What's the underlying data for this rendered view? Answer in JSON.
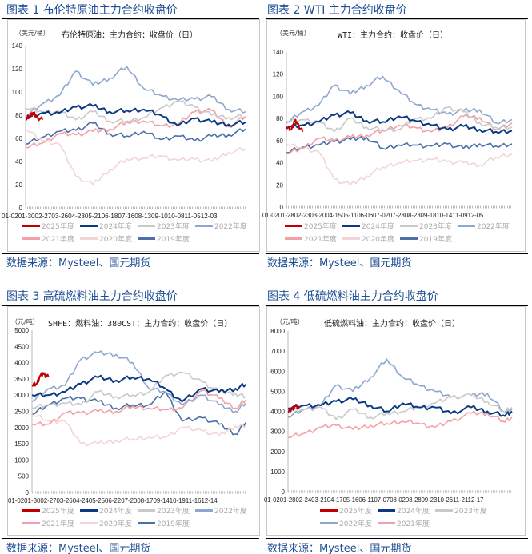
{
  "source": "数据来源：Mysteel、国元期货",
  "colors": {
    "2025年度": "#c00000",
    "2024年度": "#0b3a82",
    "2023年度": "#c9c9c9",
    "2022年度": "#8ea7cf",
    "2021年度": "#f3a0a8",
    "2020年度": "#f1d5d7",
    "2019年度": "#4b6fa9"
  },
  "chart_data": [
    {
      "type": "line",
      "figure_title": "图表 1 布伦特原油主力合约收盘价",
      "title": "布伦特原油：主力合约：收盘价（日）",
      "ylabel": "（美元/桶）",
      "ylim": [
        0,
        140
      ],
      "yticks": [
        0,
        20,
        40,
        60,
        80,
        100,
        120,
        140
      ],
      "xticks": [
        "01-02",
        "01-30",
        "02-27",
        "03-26",
        "04-23",
        "05-21",
        "06-18",
        "07-16",
        "08-13",
        "09-10",
        "10-08",
        "11-05",
        "12-03"
      ],
      "x": [
        "01-02",
        "01-30",
        "02-27",
        "03-26",
        "04-23",
        "05-21",
        "06-18",
        "07-16",
        "08-13",
        "09-10",
        "10-08",
        "11-05",
        "12-03",
        "12-31"
      ],
      "legend_placement": "bottom",
      "grid": false,
      "series": [
        {
          "name": "2025年度",
          "x": [
            "01-02",
            "01-10",
            "01-15",
            "01-20",
            "01-30"
          ],
          "values": [
            76,
            80,
            82,
            78,
            76
          ]
        },
        {
          "name": "2024年度",
          "values": [
            77,
            82,
            82,
            87,
            88,
            83,
            84,
            85,
            80,
            71,
            77,
            74,
            72,
            74
          ]
        },
        {
          "name": "2023年度",
          "values": [
            86,
            83,
            83,
            76,
            83,
            75,
            75,
            78,
            86,
            92,
            87,
            80,
            78,
            79
          ]
        },
        {
          "name": "2022年度",
          "values": [
            79,
            90,
            97,
            118,
            106,
            112,
            122,
            103,
            97,
            93,
            94,
            96,
            85,
            83
          ]
        },
        {
          "name": "2021年度",
          "values": [
            52,
            56,
            64,
            63,
            66,
            68,
            74,
            75,
            71,
            72,
            83,
            84,
            70,
            79
          ]
        },
        {
          "name": "2020年度",
          "values": [
            68,
            58,
            55,
            27,
            20,
            33,
            42,
            43,
            45,
            41,
            42,
            40,
            48,
            51
          ]
        },
        {
          "name": "2019年度",
          "values": [
            55,
            61,
            66,
            67,
            73,
            64,
            62,
            66,
            59,
            62,
            58,
            62,
            63,
            68
          ]
        }
      ]
    },
    {
      "type": "line",
      "figure_title": "图表 2 WTI 主力合约收盘价",
      "title": "WTI：主力合约：收盘价（日）",
      "ylabel": "（美元/桶）",
      "ylim": [
        0,
        140
      ],
      "yticks": [
        0,
        20,
        40,
        60,
        80,
        100,
        120,
        140
      ],
      "xticks": [
        "01-02",
        "01-28",
        "02-23",
        "03-20",
        "04-15",
        "05-11",
        "06-06",
        "07-02",
        "07-28",
        "08-23",
        "09-18",
        "10-14",
        "11-09",
        "12-05"
      ],
      "x": [
        "01-02",
        "01-28",
        "02-23",
        "03-20",
        "04-15",
        "05-11",
        "06-06",
        "07-02",
        "07-28",
        "08-23",
        "09-18",
        "10-14",
        "11-09",
        "12-05",
        "12-31"
      ],
      "legend_placement": "bottom",
      "grid": false,
      "series": [
        {
          "name": "2025年度",
          "x": [
            "01-02",
            "01-10",
            "01-15",
            "01-20",
            "01-28"
          ],
          "values": [
            72,
            70,
            78,
            75,
            68
          ]
        },
        {
          "name": "2024年度",
          "values": [
            72,
            74,
            77,
            83,
            85,
            78,
            77,
            82,
            78,
            74,
            70,
            73,
            70,
            68,
            69
          ]
        },
        {
          "name": "2023年度",
          "values": [
            77,
            79,
            77,
            68,
            80,
            72,
            70,
            70,
            80,
            80,
            90,
            86,
            76,
            72,
            72
          ]
        },
        {
          "name": "2022年度",
          "values": [
            76,
            86,
            92,
            110,
            102,
            110,
            118,
            105,
            93,
            88,
            84,
            87,
            88,
            76,
            79
          ]
        },
        {
          "name": "2021年度",
          "values": [
            48,
            53,
            62,
            60,
            63,
            65,
            69,
            74,
            72,
            68,
            72,
            82,
            81,
            70,
            76
          ]
        },
        {
          "name": "2020年度",
          "values": [
            57,
            53,
            50,
            25,
            20,
            28,
            36,
            40,
            42,
            43,
            41,
            40,
            38,
            45,
            48
          ]
        },
        {
          "name": "2019年度",
          "values": [
            49,
            54,
            56,
            59,
            61,
            63,
            53,
            56,
            56,
            55,
            57,
            53,
            57,
            55,
            57
          ]
        }
      ]
    },
    {
      "type": "line",
      "figure_title": "图表 3 高硫燃料油主力合约收盘价",
      "title": "SHFE：燃料油：380CST：主力合约：收盘价（日）",
      "ylabel": "（元/吨）",
      "ylim": [
        0,
        5000
      ],
      "yticks": [
        0,
        500,
        1000,
        1500,
        2000,
        2500,
        3000,
        3500,
        4000,
        4500,
        5000
      ],
      "xticks": [
        "01-02",
        "01-30",
        "02-27",
        "03-26",
        "04-24",
        "05-25",
        "06-22",
        "07-20",
        "08-17",
        "09-14",
        "10-19",
        "11-16",
        "12-14"
      ],
      "x": [
        "01-02",
        "01-30",
        "02-27",
        "03-26",
        "04-24",
        "05-25",
        "06-22",
        "07-20",
        "08-17",
        "09-14",
        "10-19",
        "11-16",
        "12-14",
        "12-31"
      ],
      "legend_placement": "bottom",
      "grid": false,
      "series": [
        {
          "name": "2025年度",
          "x": [
            "01-02",
            "01-10",
            "01-16",
            "01-22",
            "01-30"
          ],
          "values": [
            3300,
            3350,
            3600,
            3650,
            3550
          ]
        },
        {
          "name": "2024年度",
          "values": [
            3000,
            3000,
            3100,
            3350,
            3550,
            3450,
            3550,
            3500,
            3200,
            2800,
            3200,
            3100,
            3200,
            3330
          ]
        },
        {
          "name": "2023年度",
          "values": [
            2600,
            2700,
            2750,
            2700,
            3100,
            2950,
            3000,
            3100,
            3600,
            3700,
            3400,
            3100,
            3050,
            2950
          ]
        },
        {
          "name": "2022年度",
          "values": [
            2800,
            3200,
            3300,
            4100,
            4300,
            4250,
            4000,
            3200,
            3100,
            2700,
            3000,
            2700,
            2500,
            2750
          ]
        },
        {
          "name": "2021年度",
          "values": [
            2100,
            2100,
            2450,
            2450,
            2500,
            2500,
            2650,
            2600,
            2550,
            2600,
            3150,
            2900,
            2600,
            2850
          ]
        },
        {
          "name": "2020年度",
          "values": [
            2400,
            2200,
            2200,
            1500,
            1500,
            1600,
            1650,
            1700,
            1700,
            2000,
            1900,
            1750,
            2050,
            2050
          ]
        },
        {
          "name": "2019年度",
          "values": [
            2400,
            2700,
            2900,
            2900,
            2800,
            2600,
            2700,
            2700,
            3100,
            2200,
            2300,
            2100,
            1800,
            2150
          ]
        }
      ]
    },
    {
      "type": "line",
      "figure_title": "图表 4 低硫燃料油主力合约收盘价",
      "title": "低硫燃料油：主力合约：收盘价（日）",
      "ylabel": "（元/吨）",
      "ylim": [
        0,
        8000
      ],
      "yticks": [
        0,
        1000,
        2000,
        3000,
        4000,
        5000,
        6000,
        7000,
        8000
      ],
      "xticks": [
        "01-02",
        "01-28",
        "02-24",
        "03-21",
        "04-17",
        "05-16",
        "06-11",
        "07-07",
        "08-02",
        "08-28",
        "09-23",
        "10-26",
        "11-21",
        "12-17"
      ],
      "x": [
        "01-02",
        "01-28",
        "02-24",
        "03-21",
        "04-17",
        "05-16",
        "06-11",
        "07-07",
        "08-02",
        "08-28",
        "09-23",
        "10-26",
        "11-21",
        "12-17",
        "12-31"
      ],
      "legend_placement": "bottom",
      "grid": false,
      "series": [
        {
          "name": "2025年度",
          "x": [
            "01-02",
            "01-08",
            "01-14",
            "01-20"
          ],
          "values": [
            4000,
            4100,
            4250,
            4150
          ]
        },
        {
          "name": "2024年度",
          "values": [
            4150,
            4300,
            4300,
            4500,
            4600,
            4300,
            4000,
            4400,
            4200,
            4200,
            3900,
            4200,
            4000,
            3800,
            4000
          ]
        },
        {
          "name": "2023年度",
          "values": [
            4000,
            4100,
            4200,
            3600,
            4100,
            3700,
            3900,
            4000,
            4200,
            4400,
            4700,
            4800,
            4500,
            4000,
            4200
          ]
        },
        {
          "name": "2022年度",
          "values": [
            3700,
            4100,
            4300,
            5300,
            5000,
            5700,
            6600,
            5700,
            5300,
            5000,
            4700,
            4800,
            4900,
            4000,
            4100
          ]
        },
        {
          "name": "2021年度",
          "values": [
            2700,
            2900,
            3200,
            3300,
            3100,
            3300,
            3400,
            3500,
            3400,
            3200,
            3500,
            3900,
            3900,
            3500,
            3700
          ]
        }
      ]
    }
  ]
}
